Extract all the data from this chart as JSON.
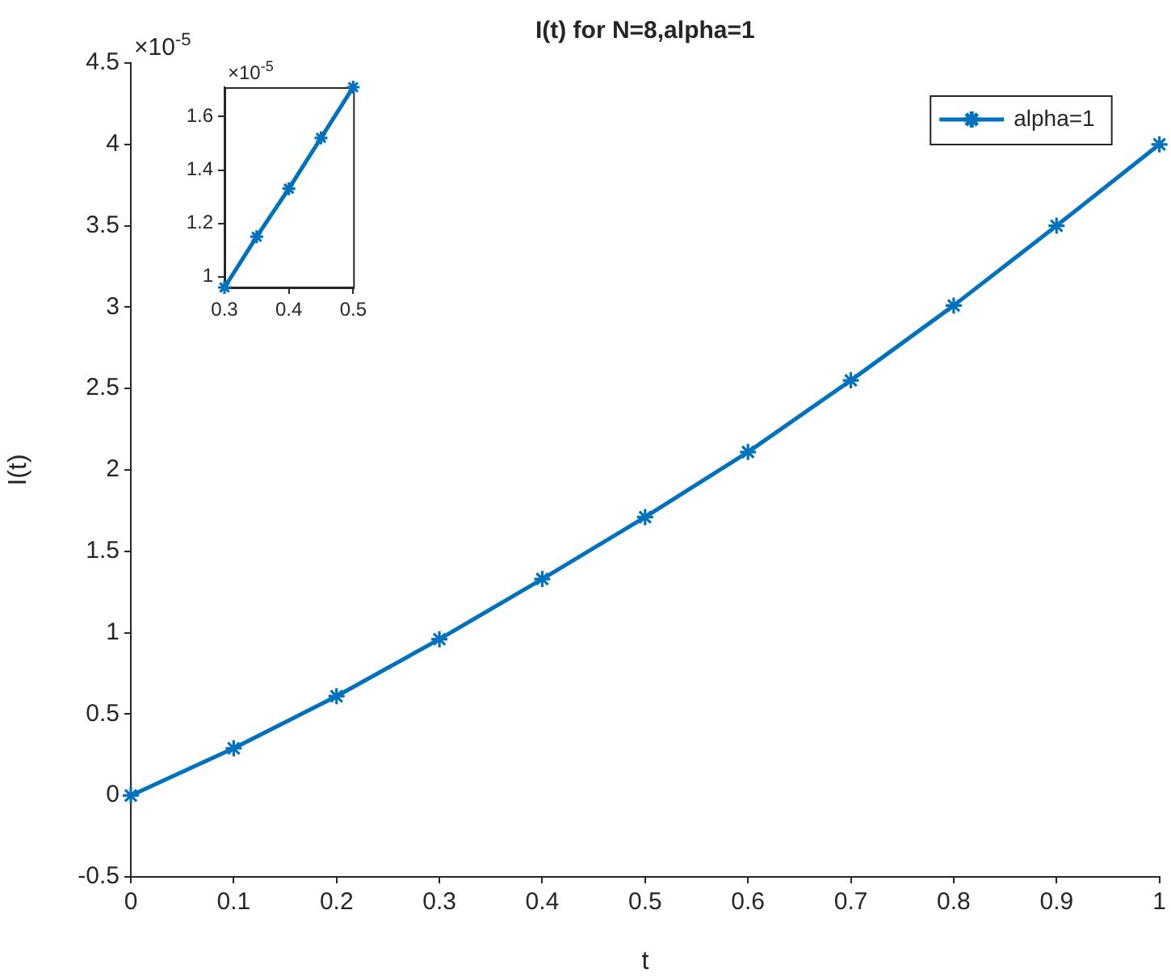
{
  "chart_data": [
    {
      "type": "line",
      "title": "I(t) for N=8,alpha=1",
      "xlabel": "t",
      "ylabel": "I(t)",
      "x": [
        0,
        0.1,
        0.2,
        0.3,
        0.4,
        0.5,
        0.6,
        0.7,
        0.8,
        0.9,
        1
      ],
      "series": [
        {
          "name": "alpha=1",
          "color": "#0072bd",
          "values": [
            0,
            0.29,
            0.61,
            0.96,
            1.33,
            1.71,
            2.11,
            2.55,
            3.01,
            3.5,
            4.0
          ]
        }
      ],
      "xlim": [
        0,
        1
      ],
      "xticks": [
        0,
        0.1,
        0.2,
        0.3,
        0.4,
        0.5,
        0.6,
        0.7,
        0.8,
        0.9,
        1
      ],
      "ylim": [
        -0.5,
        4.5
      ],
      "yticks": [
        -0.5,
        0,
        0.5,
        1,
        1.5,
        2,
        2.5,
        3,
        3.5,
        4,
        4.5
      ],
      "annotations": [
        "×10$^{-5}$"
      ],
      "legend": "top right",
      "marker": "cross",
      "grid": false
    },
    {
      "type": "line",
      "x": [
        0.3,
        0.35,
        0.4,
        0.45,
        0.5
      ],
      "series": [
        {
          "color": "#0072bd",
          "values": [
            0.96,
            1.15,
            1.33,
            1.52,
            1.71
          ]
        }
      ],
      "xlim": [
        0.3,
        0.5
      ],
      "xticks": [
        0.3,
        0.4,
        0.5
      ],
      "ylim": [
        0.96,
        1.71
      ],
      "yticks": [
        1,
        1.2,
        1.4,
        1.6
      ],
      "annotations": [
        "×10$^{-5}$"
      ],
      "marker": "cross",
      "grid": false
    }
  ]
}
